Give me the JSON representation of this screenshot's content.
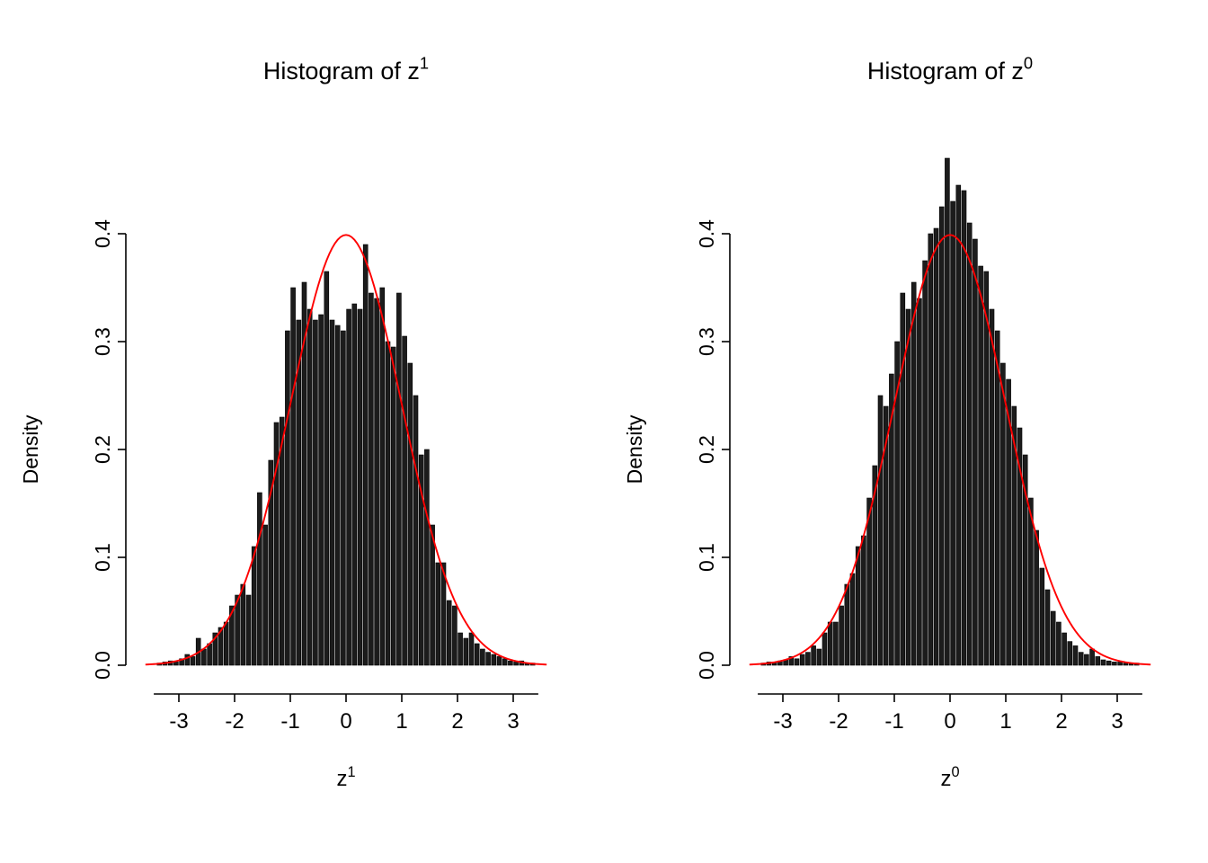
{
  "page": {
    "background": "#ffffff"
  },
  "colors": {
    "bar_fill": "#1c1c1c",
    "bar_stroke": "#000000",
    "curve": "#ff0000",
    "axis": "#000000",
    "text": "#000000"
  },
  "chart_data": [
    {
      "type": "bar",
      "kind": "histogram",
      "title_base": "Histogram of z",
      "title_sup": "1",
      "xlabel_base": "z",
      "xlabel_sup": "1",
      "ylabel": "Density",
      "x_tick_labels": [
        "-3",
        "-2",
        "-1",
        "0",
        "1",
        "2",
        "3"
      ],
      "x_ticks": [
        -3,
        -2,
        -1,
        0,
        1,
        2,
        3
      ],
      "y_tick_labels": [
        "0.0",
        "0.1",
        "0.2",
        "0.3",
        "0.4"
      ],
      "y_ticks": [
        0.0,
        0.1,
        0.2,
        0.3,
        0.4
      ],
      "xlim": [
        -3.6,
        3.6
      ],
      "ylim": [
        0,
        0.48
      ],
      "bin_start": -3.4,
      "bin_width": 0.1,
      "densities": [
        0.002,
        0.003,
        0.004,
        0.003,
        0.006,
        0.01,
        0.008,
        0.025,
        0.015,
        0.02,
        0.03,
        0.035,
        0.04,
        0.055,
        0.065,
        0.075,
        0.065,
        0.11,
        0.16,
        0.13,
        0.19,
        0.225,
        0.23,
        0.31,
        0.35,
        0.32,
        0.355,
        0.33,
        0.32,
        0.325,
        0.365,
        0.32,
        0.315,
        0.31,
        0.33,
        0.335,
        0.33,
        0.39,
        0.345,
        0.34,
        0.35,
        0.3,
        0.295,
        0.345,
        0.305,
        0.28,
        0.25,
        0.195,
        0.2,
        0.13,
        0.095,
        0.095,
        0.06,
        0.055,
        0.03,
        0.025,
        0.03,
        0.02,
        0.015,
        0.012,
        0.01,
        0.008,
        0.006,
        0.004,
        0.003,
        0.004,
        0.002,
        0.002
      ],
      "overlay_curve": {
        "type": "normal",
        "mean": 0,
        "sd": 1,
        "peak_density": 0.3989
      }
    },
    {
      "type": "bar",
      "kind": "histogram",
      "title_base": "Histogram of z",
      "title_sup": "0",
      "xlabel_base": "z",
      "xlabel_sup": "0",
      "ylabel": "Density",
      "x_tick_labels": [
        "-3",
        "-2",
        "-1",
        "0",
        "1",
        "2",
        "3"
      ],
      "x_ticks": [
        -3,
        -2,
        -1,
        0,
        1,
        2,
        3
      ],
      "y_tick_labels": [
        "0.0",
        "0.1",
        "0.2",
        "0.3",
        "0.4"
      ],
      "y_ticks": [
        0.0,
        0.1,
        0.2,
        0.3,
        0.4
      ],
      "xlim": [
        -3.6,
        3.6
      ],
      "ylim": [
        0,
        0.48
      ],
      "bin_start": -3.4,
      "bin_width": 0.1,
      "densities": [
        0.002,
        0.003,
        0.003,
        0.004,
        0.005,
        0.008,
        0.006,
        0.01,
        0.012,
        0.018,
        0.015,
        0.03,
        0.04,
        0.04,
        0.055,
        0.075,
        0.085,
        0.11,
        0.12,
        0.155,
        0.185,
        0.25,
        0.24,
        0.27,
        0.3,
        0.345,
        0.33,
        0.355,
        0.34,
        0.375,
        0.4,
        0.405,
        0.425,
        0.47,
        0.43,
        0.445,
        0.44,
        0.41,
        0.395,
        0.37,
        0.365,
        0.33,
        0.31,
        0.28,
        0.265,
        0.24,
        0.22,
        0.195,
        0.155,
        0.125,
        0.09,
        0.07,
        0.05,
        0.04,
        0.03,
        0.022,
        0.018,
        0.012,
        0.01,
        0.015,
        0.008,
        0.005,
        0.004,
        0.003,
        0.003,
        0.002,
        0.002,
        0.002
      ],
      "overlay_curve": {
        "type": "normal",
        "mean": 0,
        "sd": 1,
        "peak_density": 0.3989
      }
    }
  ]
}
